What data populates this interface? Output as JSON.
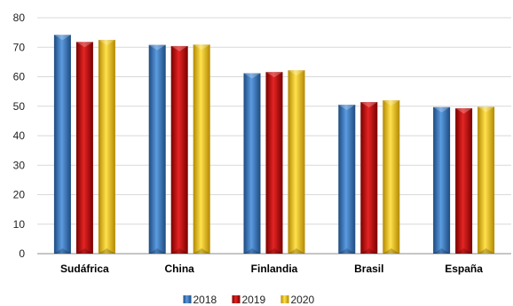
{
  "chart_data": {
    "type": "bar",
    "title": "",
    "xlabel": "",
    "ylabel": "",
    "categories": [
      "Sudáfrica",
      "China",
      "Finlandia",
      "Brasil",
      "España"
    ],
    "series": [
      {
        "name": "2018",
        "color": "#2e6db4",
        "values": [
          74.2,
          70.8,
          61.2,
          50.5,
          49.7
        ]
      },
      {
        "name": "2019",
        "color": "#c00000",
        "values": [
          71.8,
          70.4,
          61.6,
          51.4,
          49.3
        ]
      },
      {
        "name": "2020",
        "color": "#f2c200",
        "values": [
          72.5,
          70.9,
          62.2,
          52.0,
          49.8
        ]
      }
    ],
    "ylim": [
      0,
      80
    ],
    "yticks": [
      0,
      10,
      20,
      30,
      40,
      50,
      60,
      70,
      80
    ],
    "grid": true,
    "legend": "bottom-center"
  }
}
